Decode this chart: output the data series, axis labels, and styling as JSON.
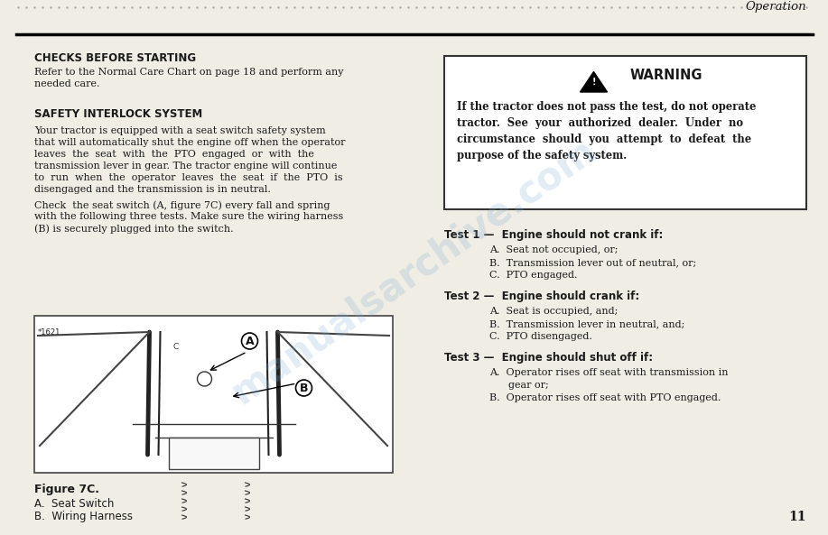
{
  "bg_color": "#f0ede4",
  "header_italic": "Operation",
  "page_number": "11",
  "watermark_text": "manualsarchive.com",
  "checks_title": "CHECKS BEFORE STARTING",
  "checks_body_l1": "Refer to the Normal Care Chart on page 18 and perform any",
  "checks_body_l2": "needed care.",
  "safety_title": "SAFETY INTERLOCK SYSTEM",
  "safety_body1_lines": [
    "Your tractor is equipped with a seat switch safety system",
    "that will automatically shut the engine off when the operator",
    "leaves  the  seat  with  the  PTO  engaged  or  with  the",
    "transmission lever in gear. The tractor engine will continue",
    "to  run  when  the  operator  leaves  the  seat  if  the  PTO  is",
    "disengaged and the transmission is in neutral."
  ],
  "safety_body2_lines": [
    "Check  the seat switch (A, figure 7C) every fall and spring",
    "with the following three tests. Make sure the wiring harness",
    "(B) is securely plugged into the switch."
  ],
  "figure_label": "Figure 7C.",
  "figure_a": "A.  Seat Switch",
  "figure_b": "B.  Wiring Harness",
  "warning_title": "WARNING",
  "warning_body_lines": [
    "If the tractor does not pass the test, do not operate",
    "tractor.  See  your  authorized  dealer.  Under  no",
    "circumstance  should  you  attempt  to  defeat  the",
    "purpose of the safety system."
  ],
  "test1_title": "Test 1 —  Engine should not crank if:",
  "test1_items": [
    "A.  Seat not occupied, or;",
    "B.  Transmission lever out of neutral, or;",
    "C.  PTO engaged."
  ],
  "test2_title": "Test 2 —  Engine should crank if:",
  "test2_items": [
    "A.  Seat is occupied, and;",
    "B.  Transmission lever in neutral, and;",
    "C.  PTO disengaged."
  ],
  "test3_title": "Test 3 —  Engine should shut off if:",
  "test3_items": [
    "A.  Operator rises off seat with transmission in",
    "      gear or;",
    "B.  Operator rises off seat with PTO engaged."
  ],
  "font_color": "#1a1a1a"
}
